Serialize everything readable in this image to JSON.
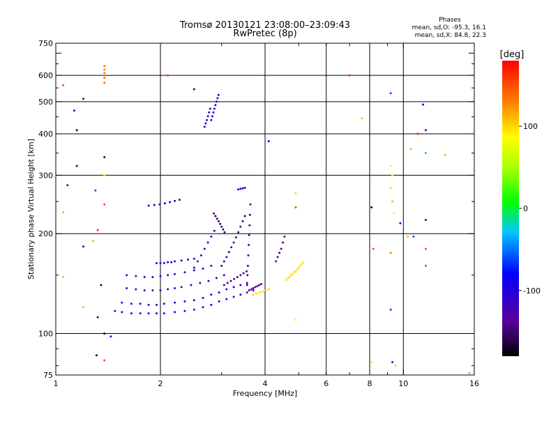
{
  "chart_data": {
    "type": "scatter",
    "title": "Tromsø 20130121 23:08:00–23:09:43",
    "subtitle": "RwPretec (8p)",
    "xlabel": "Frequency [MHz]",
    "ylabel": "Stationary phase Virtual Height [km]",
    "x_scale": "log",
    "y_scale": "log",
    "xlim": [
      1,
      16
    ],
    "ylim": [
      75,
      750
    ],
    "x_ticks": [
      1,
      2,
      4,
      6,
      8,
      10,
      16
    ],
    "y_ticks": [
      75,
      100,
      200,
      300,
      400,
      500,
      600,
      750
    ],
    "x_grid": [
      2,
      4,
      6,
      8,
      10
    ],
    "y_grid": [
      100,
      200,
      300,
      400,
      500,
      600
    ],
    "grid": true,
    "info_box": {
      "heading": "Phases",
      "line1": "mean, sd,O: -95.3, 16.1",
      "line2": "mean, sd,X:  84.8, 22.3"
    },
    "colorbar": {
      "label": "[deg]",
      "range": [
        -180,
        180
      ],
      "ticks": [
        100,
        0,
        -100
      ],
      "tick_labels": [
        "100",
        "0",
        "-100"
      ],
      "location": "right"
    },
    "echo_traces": [
      {
        "x": [
          1.48,
          1.55,
          1.65,
          1.75,
          1.85,
          1.95,
          2.05,
          2.2,
          2.35,
          2.5,
          2.65,
          2.8,
          2.95,
          3.1,
          3.25,
          3.4,
          3.55,
          3.7
        ],
        "y": [
          117,
          116,
          115,
          115,
          115,
          115,
          115,
          116,
          117,
          118,
          120,
          122,
          125,
          127,
          129,
          131,
          133,
          135
        ],
        "phase": -100
      },
      {
        "x": [
          1.55,
          1.65,
          1.75,
          1.85,
          1.95,
          2.05,
          2.2,
          2.35,
          2.5,
          2.65,
          2.8,
          2.95,
          3.1,
          3.25,
          3.4,
          3.55
        ],
        "y": [
          124,
          123,
          123,
          122,
          122,
          123,
          124,
          125,
          126,
          128,
          131,
          133,
          136,
          138,
          140,
          142
        ],
        "phase": -105
      },
      {
        "x": [
          1.6,
          1.7,
          1.8,
          1.9,
          2.0,
          2.1,
          2.2,
          2.3,
          2.45,
          2.6,
          2.75,
          2.9,
          3.05
        ],
        "y": [
          137,
          136,
          135,
          135,
          135,
          136,
          137,
          138,
          140,
          142,
          144,
          147,
          150
        ],
        "phase": -115
      },
      {
        "x": [
          1.6,
          1.7,
          1.8,
          1.9,
          2.0,
          2.1,
          2.2,
          2.35,
          2.5,
          2.65,
          2.8
        ],
        "y": [
          150,
          149,
          148,
          148,
          149,
          150,
          151,
          153,
          155,
          157,
          160
        ],
        "phase": -115
      },
      {
        "x": [
          1.95,
          2.0,
          2.05,
          2.1,
          2.15,
          2.2,
          2.3,
          2.4,
          2.5
        ],
        "y": [
          163,
          163,
          163,
          164,
          164,
          165,
          166,
          167,
          168
        ],
        "phase": -110
      },
      {
        "x": [
          2.5,
          2.56,
          2.62,
          2.68,
          2.74,
          2.8,
          2.86
        ],
        "y": [
          158,
          165,
          172,
          180,
          188,
          196,
          204
        ],
        "phase": -115
      },
      {
        "x": [
          2.85,
          2.88,
          2.91,
          2.94,
          2.97,
          3.0,
          3.03,
          3.06
        ],
        "y": [
          230,
          226,
          222,
          218,
          214,
          210,
          206,
          202
        ],
        "phase": -150
      },
      {
        "x": [
          3.0,
          3.05,
          3.1,
          3.15,
          3.2,
          3.25,
          3.3,
          3.35,
          3.4,
          3.45,
          3.5
        ],
        "y": [
          160,
          165,
          170,
          176,
          182,
          188,
          195,
          202,
          210,
          218,
          226
        ],
        "phase": -145
      },
      {
        "x": [
          3.05,
          3.12,
          3.19,
          3.26,
          3.33,
          3.4,
          3.47,
          3.54
        ],
        "y": [
          140,
          142,
          144,
          146,
          148,
          150,
          152,
          154
        ],
        "phase": -140
      },
      {
        "x": [
          3.55,
          3.56,
          3.57,
          3.58,
          3.59,
          3.6,
          3.61,
          3.62,
          3.63
        ],
        "y": [
          140,
          150,
          160,
          172,
          185,
          198,
          212,
          228,
          245
        ],
        "phase": -145
      },
      {
        "x": [
          3.6,
          3.65,
          3.7,
          3.75,
          3.8,
          3.85,
          3.9
        ],
        "y": [
          135,
          136,
          137,
          138,
          139,
          140,
          141
        ],
        "phase": -140
      },
      {
        "x": [
          4.3,
          4.35,
          4.4,
          4.45,
          4.5,
          4.55
        ],
        "y": [
          165,
          170,
          175,
          180,
          188,
          196
        ],
        "phase": -140
      },
      {
        "x": [
          4.6,
          4.65,
          4.7,
          4.75,
          4.8,
          4.85,
          4.9,
          4.95,
          5.0,
          5.05,
          5.1,
          5.15
        ],
        "y": [
          145,
          147,
          148,
          150,
          151,
          153,
          154,
          156,
          158,
          160,
          162,
          164
        ],
        "phase": 95
      },
      {
        "x": [
          3.7,
          3.78,
          3.86,
          3.94,
          4.02,
          4.1
        ],
        "y": [
          131,
          132,
          133,
          134,
          135,
          136
        ],
        "phase": 100
      },
      {
        "x": [
          1.85,
          1.92,
          1.99,
          2.06,
          2.13,
          2.2,
          2.27
        ],
        "y": [
          243,
          244,
          245,
          247,
          249,
          251,
          253
        ],
        "phase": -105
      },
      {
        "x": [
          2.68,
          2.7,
          2.72,
          2.74,
          2.76,
          2.78
        ],
        "y": [
          420,
          430,
          440,
          452,
          464,
          476
        ],
        "phase": -110
      },
      {
        "x": [
          2.8,
          2.82,
          2.84,
          2.86,
          2.88,
          2.9,
          2.92,
          2.94
        ],
        "y": [
          440,
          452,
          464,
          476,
          488,
          500,
          512,
          524
        ],
        "phase": -100
      },
      {
        "x": [
          3.35,
          3.4,
          3.45,
          3.5
        ],
        "y": [
          272,
          273,
          274,
          275
        ],
        "phase": -105
      },
      {
        "x": [
          1.38,
          1.38,
          1.38,
          1.38,
          1.38
        ],
        "y": [
          570,
          590,
          610,
          625,
          640
        ],
        "phase": 135
      }
    ],
    "isolated_points": [
      {
        "x": 1.05,
        "y": 560,
        "phase": 150
      },
      {
        "x": 1.13,
        "y": 470,
        "phase": -100
      },
      {
        "x": 1.2,
        "y": 510,
        "phase": -140
      },
      {
        "x": 1.15,
        "y": 410,
        "phase": -160
      },
      {
        "x": 1.15,
        "y": 320,
        "phase": -150
      },
      {
        "x": 1.08,
        "y": 280,
        "phase": -140
      },
      {
        "x": 1.3,
        "y": 270,
        "phase": -60
      },
      {
        "x": 1.38,
        "y": 340,
        "phase": -160
      },
      {
        "x": 1.38,
        "y": 300,
        "phase": 60
      },
      {
        "x": 1.38,
        "y": 245,
        "phase": 150
      },
      {
        "x": 1.32,
        "y": 205,
        "phase": 160
      },
      {
        "x": 1.05,
        "y": 232,
        "phase": 30
      },
      {
        "x": 1.2,
        "y": 183,
        "phase": -100
      },
      {
        "x": 1.28,
        "y": 190,
        "phase": 110
      },
      {
        "x": 1.05,
        "y": 148,
        "phase": 40
      },
      {
        "x": 1.35,
        "y": 140,
        "phase": -160
      },
      {
        "x": 1.2,
        "y": 120,
        "phase": 40
      },
      {
        "x": 1.32,
        "y": 112,
        "phase": -150
      },
      {
        "x": 1.38,
        "y": 100,
        "phase": -170
      },
      {
        "x": 1.44,
        "y": 98,
        "phase": -110
      },
      {
        "x": 1.31,
        "y": 86,
        "phase": -170
      },
      {
        "x": 1.38,
        "y": 83,
        "phase": 150
      },
      {
        "x": 2.5,
        "y": 545,
        "phase": -150
      },
      {
        "x": 2.1,
        "y": 600,
        "phase": 160
      },
      {
        "x": 4.1,
        "y": 380,
        "phase": -100
      },
      {
        "x": 4.9,
        "y": 265,
        "phase": 100
      },
      {
        "x": 4.9,
        "y": 240,
        "phase": 150
      },
      {
        "x": 4.9,
        "y": 110,
        "phase": 80
      },
      {
        "x": 7.0,
        "y": 600,
        "phase": 170
      },
      {
        "x": 7.6,
        "y": 445,
        "phase": 110
      },
      {
        "x": 8.1,
        "y": 240,
        "phase": -170
      },
      {
        "x": 8.2,
        "y": 180,
        "phase": 150
      },
      {
        "x": 8.1,
        "y": 82,
        "phase": 90
      },
      {
        "x": 9.2,
        "y": 530,
        "phase": -60
      },
      {
        "x": 9.2,
        "y": 320,
        "phase": 90
      },
      {
        "x": 9.3,
        "y": 300,
        "phase": 80
      },
      {
        "x": 9.2,
        "y": 275,
        "phase": 100
      },
      {
        "x": 9.3,
        "y": 250,
        "phase": 110
      },
      {
        "x": 9.4,
        "y": 230,
        "phase": 90
      },
      {
        "x": 9.2,
        "y": 175,
        "phase": 130
      },
      {
        "x": 9.2,
        "y": 118,
        "phase": -60
      },
      {
        "x": 9.3,
        "y": 82,
        "phase": -120
      },
      {
        "x": 9.5,
        "y": 80,
        "phase": 100
      },
      {
        "x": 9.8,
        "y": 215,
        "phase": -100
      },
      {
        "x": 10.3,
        "y": 196,
        "phase": 110
      },
      {
        "x": 10.7,
        "y": 196,
        "phase": -60
      },
      {
        "x": 10.5,
        "y": 360,
        "phase": 110
      },
      {
        "x": 11.0,
        "y": 400,
        "phase": 170
      },
      {
        "x": 11.4,
        "y": 490,
        "phase": -80
      },
      {
        "x": 11.6,
        "y": 410,
        "phase": -110
      },
      {
        "x": 11.6,
        "y": 350,
        "phase": -20
      },
      {
        "x": 11.6,
        "y": 220,
        "phase": -120
      },
      {
        "x": 11.6,
        "y": 180,
        "phase": 150
      },
      {
        "x": 11.6,
        "y": 160,
        "phase": 150
      },
      {
        "x": 13.2,
        "y": 345,
        "phase": 110
      },
      {
        "x": 15.5,
        "y": 76,
        "phase": 120
      }
    ]
  }
}
